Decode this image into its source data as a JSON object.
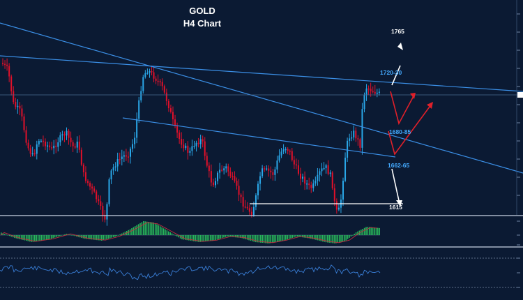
{
  "chart_data": {
    "type": "candlestick",
    "title": "GOLD",
    "subtitle": "H4 Chart",
    "colors": {
      "background": "#0b1a33",
      "bull_candle": "#2aa7e8",
      "bear_candle": "#e0102a",
      "trendline": "#3b8fe6",
      "scenario_red": "#e0202a",
      "scenario_white": "#ffffff",
      "histogram": "#28b45a",
      "osc_line": "#3a7fd8",
      "label_blue": "#44aaff"
    },
    "levels": [
      {
        "label": "1765",
        "color": "white"
      },
      {
        "label": "1720-30",
        "color": "blue"
      },
      {
        "label": "1680-85",
        "color": "blue"
      },
      {
        "label": "1662-65",
        "color": "blue"
      },
      {
        "label": "1615",
        "color": "white"
      }
    ]
  }
}
